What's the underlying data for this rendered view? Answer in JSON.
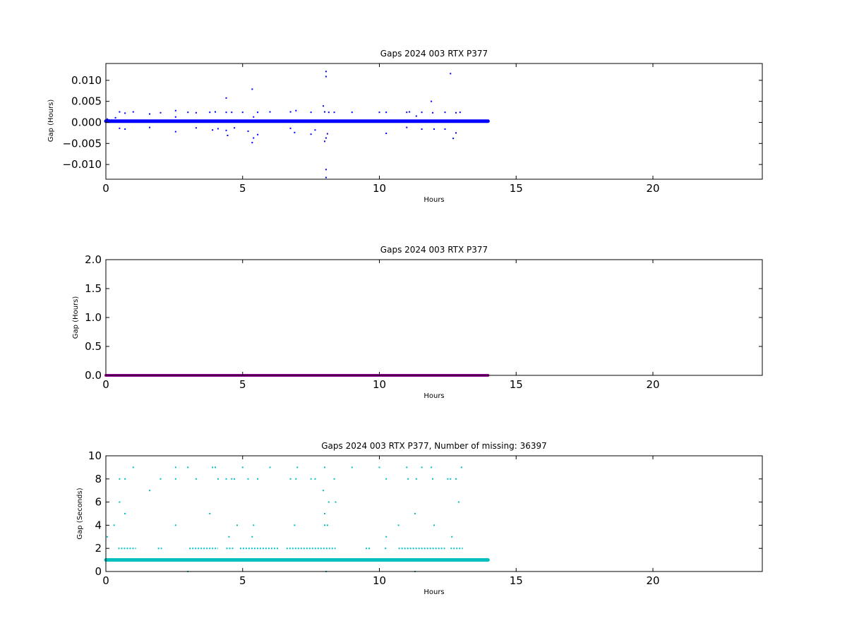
{
  "chart_data": [
    {
      "type": "scatter",
      "title": "Gaps 2024 003 RTX  P377",
      "xlabel": "Hours",
      "ylabel": "Gap (Hours)",
      "xlim": [
        0,
        24
      ],
      "ylim": [
        -0.0135,
        0.014
      ],
      "xticks": [
        0,
        5,
        10,
        15,
        20
      ],
      "yticks": [
        -0.01,
        -0.005,
        0.0,
        0.005,
        0.01
      ],
      "ytick_labels": [
        "−0.010",
        "−0.005",
        "0.000",
        "0.005",
        "0.010"
      ],
      "grid": false,
      "color": "#0000ff",
      "series": [
        {
          "baseline": {
            "x_start": 0.0,
            "x_end": 13.97,
            "y": 0.0003
          },
          "points": [
            [
              0.05,
              0.0008
            ],
            [
              0.1,
              0.0006
            ],
            [
              0.35,
              0.0011
            ],
            [
              0.5,
              0.0025
            ],
            [
              0.5,
              -0.0014
            ],
            [
              0.7,
              0.0022
            ],
            [
              0.7,
              -0.0016
            ],
            [
              1.0,
              0.0025
            ],
            [
              1.6,
              0.002
            ],
            [
              1.6,
              -0.0012
            ],
            [
              2.0,
              0.0023
            ],
            [
              2.55,
              0.0028
            ],
            [
              2.55,
              -0.0022
            ],
            [
              2.55,
              0.0013
            ],
            [
              3.0,
              0.0024
            ],
            [
              3.3,
              0.0023
            ],
            [
              3.3,
              -0.0013
            ],
            [
              3.8,
              0.0024
            ],
            [
              3.9,
              -0.0018
            ],
            [
              4.0,
              0.0025
            ],
            [
              4.1,
              -0.0015
            ],
            [
              4.4,
              0.0058
            ],
            [
              4.4,
              0.0024
            ],
            [
              4.4,
              -0.0019
            ],
            [
              4.45,
              -0.0031
            ],
            [
              4.6,
              0.0024
            ],
            [
              4.7,
              -0.0013
            ],
            [
              5.0,
              0.0024
            ],
            [
              5.2,
              -0.0021
            ],
            [
              5.35,
              0.0079
            ],
            [
              5.35,
              -0.0048
            ],
            [
              5.4,
              -0.0037
            ],
            [
              5.4,
              0.0013
            ],
            [
              5.55,
              -0.0029
            ],
            [
              5.55,
              0.0024
            ],
            [
              6.0,
              0.0025
            ],
            [
              6.75,
              0.0025
            ],
            [
              6.75,
              -0.0014
            ],
            [
              6.9,
              -0.0024
            ],
            [
              6.95,
              0.0028
            ],
            [
              7.5,
              0.0024
            ],
            [
              7.5,
              -0.0028
            ],
            [
              7.65,
              -0.0018
            ],
            [
              7.95,
              0.0039
            ],
            [
              8.0,
              0.0025
            ],
            [
              8.0,
              -0.0045
            ],
            [
              8.05,
              0.0121
            ],
            [
              8.05,
              0.0109
            ],
            [
              8.05,
              -0.0112
            ],
            [
              8.05,
              -0.0131
            ],
            [
              8.05,
              -0.0037
            ],
            [
              8.1,
              -0.0027
            ],
            [
              8.15,
              0.0024
            ],
            [
              8.35,
              0.0024
            ],
            [
              9.0,
              0.0024
            ],
            [
              10.0,
              0.0024
            ],
            [
              10.25,
              -0.0026
            ],
            [
              10.25,
              0.0024
            ],
            [
              11.0,
              0.0024
            ],
            [
              11.0,
              -0.0012
            ],
            [
              11.1,
              0.0025
            ],
            [
              11.35,
              0.0015
            ],
            [
              11.55,
              0.0024
            ],
            [
              11.55,
              -0.0016
            ],
            [
              11.9,
              0.005
            ],
            [
              11.95,
              0.0023
            ],
            [
              12.0,
              -0.0016
            ],
            [
              12.4,
              0.0024
            ],
            [
              12.4,
              -0.0016
            ],
            [
              12.6,
              0.0116
            ],
            [
              12.7,
              -0.0038
            ],
            [
              12.8,
              0.0023
            ],
            [
              12.8,
              -0.0025
            ],
            [
              12.95,
              0.0024
            ]
          ]
        }
      ]
    },
    {
      "type": "line",
      "title": "Gaps 2024 003 RTX  P377",
      "xlabel": "Hours",
      "ylabel": "Gap (Hours)",
      "xlim": [
        0,
        24
      ],
      "ylim": [
        0,
        2.0
      ],
      "xticks": [
        0,
        5,
        10,
        15,
        20
      ],
      "yticks": [
        0.0,
        0.5,
        1.0,
        1.5,
        2.0
      ],
      "ytick_labels": [
        "0.0",
        "0.5",
        "1.0",
        "1.5",
        "2.0"
      ],
      "grid": false,
      "color": "#990099",
      "series": [
        {
          "x": [
            0.0,
            13.97
          ],
          "y": [
            0.0003,
            0.0003
          ]
        }
      ]
    },
    {
      "type": "scatter",
      "title": "Gaps 2024 003 RTX  P377, Number of missing: 36397",
      "xlabel": "Hours",
      "ylabel": "Gap (Seconds)",
      "xlim": [
        0,
        24
      ],
      "ylim": [
        0,
        10
      ],
      "xticks": [
        0,
        5,
        10,
        15,
        20
      ],
      "yticks": [
        0,
        2,
        4,
        6,
        8,
        10
      ],
      "ytick_labels": [
        "0",
        "2",
        "4",
        "6",
        "8",
        "10"
      ],
      "grid": false,
      "color": "#00bfbf",
      "series": [
        {
          "baseline": {
            "x_start": 0.0,
            "x_end": 13.97,
            "y": 1
          },
          "points": [
            [
              0.05,
              3
            ],
            [
              0.3,
              4
            ],
            [
              0.5,
              8
            ],
            [
              0.5,
              6
            ],
            [
              0.7,
              8
            ],
            [
              0.7,
              5
            ],
            [
              1.0,
              9
            ],
            [
              1.6,
              7
            ],
            [
              2.0,
              8
            ],
            [
              2.55,
              9
            ],
            [
              2.55,
              8
            ],
            [
              2.55,
              4
            ],
            [
              3.0,
              9
            ],
            [
              3.0,
              0
            ],
            [
              3.3,
              8
            ],
            [
              3.8,
              5
            ],
            [
              3.9,
              9
            ],
            [
              4.0,
              9
            ],
            [
              4.1,
              8
            ],
            [
              4.4,
              8
            ],
            [
              4.5,
              3
            ],
            [
              4.6,
              8
            ],
            [
              4.7,
              8
            ],
            [
              4.8,
              4
            ],
            [
              5.0,
              9
            ],
            [
              5.2,
              8
            ],
            [
              5.35,
              3
            ],
            [
              5.4,
              4
            ],
            [
              5.55,
              8
            ],
            [
              6.0,
              9
            ],
            [
              6.75,
              8
            ],
            [
              6.9,
              4
            ],
            [
              6.95,
              8
            ],
            [
              7.0,
              9
            ],
            [
              7.5,
              8
            ],
            [
              7.65,
              8
            ],
            [
              7.95,
              7
            ],
            [
              8.0,
              9
            ],
            [
              8.0,
              5
            ],
            [
              8.0,
              4
            ],
            [
              8.05,
              0
            ],
            [
              8.1,
              4
            ],
            [
              8.15,
              6
            ],
            [
              8.35,
              8
            ],
            [
              8.4,
              6
            ],
            [
              9.0,
              9
            ],
            [
              10.0,
              9
            ],
            [
              10.25,
              8
            ],
            [
              10.25,
              3
            ],
            [
              10.7,
              4
            ],
            [
              11.0,
              9
            ],
            [
              11.05,
              8
            ],
            [
              11.3,
              5
            ],
            [
              11.35,
              8
            ],
            [
              11.3,
              0
            ],
            [
              11.55,
              9
            ],
            [
              11.9,
              9
            ],
            [
              11.95,
              8
            ],
            [
              12.0,
              4
            ],
            [
              12.5,
              8
            ],
            [
              12.6,
              8
            ],
            [
              12.65,
              3
            ],
            [
              12.8,
              8
            ],
            [
              12.9,
              6
            ],
            [
              13.0,
              9
            ]
          ],
          "clusters": [
            {
              "x_start": 0.45,
              "x_end": 1.1,
              "y": 2
            },
            {
              "x_start": 1.9,
              "x_end": 2.05,
              "y": 2
            },
            {
              "x_start": 3.05,
              "x_end": 4.1,
              "y": 2
            },
            {
              "x_start": 4.4,
              "x_end": 4.7,
              "y": 2
            },
            {
              "x_start": 4.9,
              "x_end": 6.3,
              "y": 2
            },
            {
              "x_start": 6.6,
              "x_end": 8.4,
              "y": 2
            },
            {
              "x_start": 9.5,
              "x_end": 9.7,
              "y": 2
            },
            {
              "x_start": 10.2,
              "x_end": 10.3,
              "y": 2
            },
            {
              "x_start": 10.7,
              "x_end": 12.4,
              "y": 2
            },
            {
              "x_start": 12.6,
              "x_end": 13.05,
              "y": 2
            }
          ]
        }
      ]
    }
  ]
}
